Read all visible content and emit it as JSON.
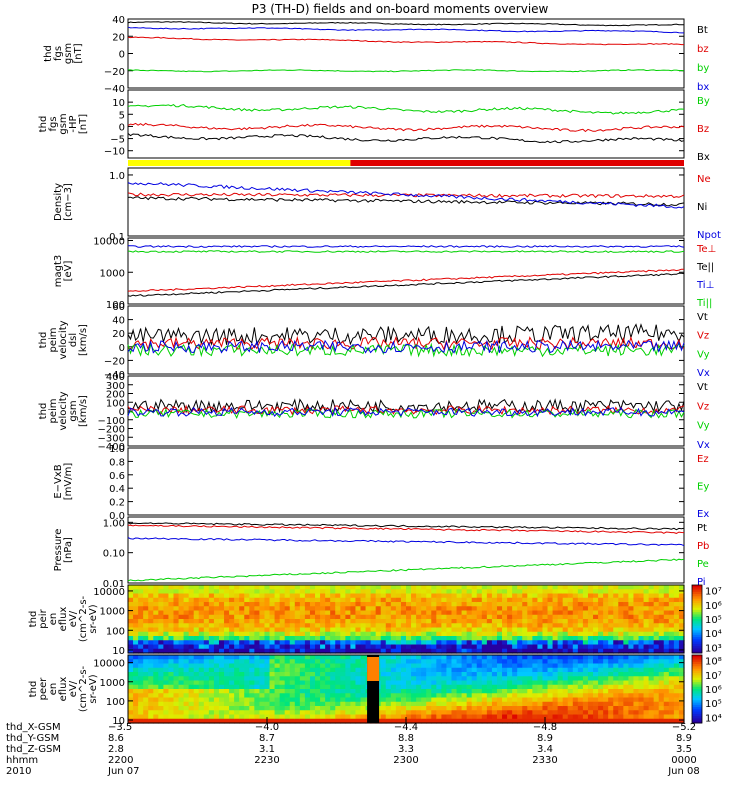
{
  "title": "P3 (TH-D) fields and on-board moments overview",
  "colors": {
    "black": "#000000",
    "red": "#e00000",
    "green": "#00d000",
    "blue": "#0000e0",
    "yellow": "#ffff00"
  },
  "chart_data": [
    {
      "type": "line",
      "name": "thd fgs gsm",
      "ylabel": [
        "thd",
        "fgs",
        "gsm",
        "[nT]"
      ],
      "ylim": [
        -40,
        40
      ],
      "yticks": [
        "40",
        "20",
        "0",
        "−20",
        "−40"
      ],
      "ytick_values": [
        40,
        20,
        0,
        -20,
        -40
      ],
      "series": [
        {
          "name": "Bt",
          "color": "black",
          "start": 36,
          "end": 33
        },
        {
          "name": "bz",
          "color": "red",
          "start": 18,
          "end": 10
        },
        {
          "name": "by",
          "color": "green",
          "start": -20,
          "end": -20
        },
        {
          "name": "bx",
          "color": "blue",
          "start": 30,
          "end": 25
        }
      ]
    },
    {
      "type": "line",
      "name": "thd fgs gsm-HP",
      "ylabel": [
        "thd",
        "fgs",
        "gsm",
        "-HP",
        "[nT]"
      ],
      "ylim": [
        -13,
        15
      ],
      "yticks": [
        "10",
        "5",
        "0",
        "−5",
        "−10"
      ],
      "ytick_values": [
        10,
        5,
        0,
        -5,
        -10
      ],
      "series": [
        {
          "name": "By",
          "color": "green",
          "start": 8,
          "end": 6
        },
        {
          "name": "Bz",
          "color": "red",
          "start": 0,
          "end": -1
        },
        {
          "name": "Bx",
          "color": "black",
          "start": -4,
          "end": -6
        }
      ]
    },
    {
      "type": "bar",
      "name": "mode bar",
      "segments": [
        {
          "color": "yellow",
          "from": 0,
          "to": 0.4
        },
        {
          "color": "red",
          "from": 0.4,
          "to": 1
        }
      ]
    },
    {
      "type": "line",
      "name": "Density",
      "ylabel": [
        "Density",
        "[cm−3]"
      ],
      "ylim": [
        0.1,
        1.3
      ],
      "log": true,
      "yticks": [
        "1.0",
        "0.1"
      ],
      "ytick_values": [
        1.0,
        0.1
      ],
      "series": [
        {
          "name": "Ne",
          "color": "red",
          "start": 0.48,
          "end": 0.45
        },
        {
          "name": "Ni",
          "color": "black",
          "start": 0.42,
          "end": 0.33
        },
        {
          "name": "Npot",
          "color": "blue",
          "start": 0.75,
          "end": 0.3
        }
      ]
    },
    {
      "type": "line",
      "name": "magt3",
      "ylabel": [
        "magt3",
        "[eV]"
      ],
      "ylim": [
        100,
        12000
      ],
      "log": true,
      "yticks": [
        "10000",
        "1000",
        "100"
      ],
      "ytick_values": [
        10000,
        1000,
        100
      ],
      "series": [
        {
          "name": "Te⊥",
          "color": "red",
          "start": 250,
          "end": 1200
        },
        {
          "name": "Te||",
          "color": "black",
          "start": 180,
          "end": 900
        },
        {
          "name": "Ti⊥",
          "color": "blue",
          "start": 6500,
          "end": 6500
        },
        {
          "name": "Ti||",
          "color": "green",
          "start": 4500,
          "end": 4500
        }
      ]
    },
    {
      "type": "line",
      "name": "thd peim velocity dsl",
      "ylabel": [
        "thd",
        "peim",
        "velocity",
        "dsl",
        "[km/s]"
      ],
      "ylim": [
        -40,
        60
      ],
      "yticks": [
        "60",
        "40",
        "20",
        "0",
        "−20",
        "−40"
      ],
      "ytick_values": [
        60,
        40,
        20,
        0,
        -20,
        -40
      ],
      "series": [
        {
          "name": "Vt",
          "color": "black",
          "start": 15,
          "end": 20
        },
        {
          "name": "Vz",
          "color": "red",
          "start": 5,
          "end": 5
        },
        {
          "name": "Vy",
          "color": "green",
          "start": -5,
          "end": -5
        },
        {
          "name": "Vx",
          "color": "blue",
          "start": 0,
          "end": 0
        }
      ]
    },
    {
      "type": "line",
      "name": "thd peim velocity gsm",
      "ylabel": [
        "thd",
        "peim",
        "velocity",
        "gsm",
        "[km/s]"
      ],
      "ylim": [
        -400,
        400
      ],
      "yticks": [
        "400",
        "300",
        "200",
        "100",
        "0",
        "−100",
        "−200",
        "−300",
        "−400"
      ],
      "ytick_values": [
        400,
        300,
        200,
        100,
        0,
        -100,
        -200,
        -300,
        -400
      ],
      "series": [
        {
          "name": "Vt",
          "color": "black",
          "start": 60,
          "end": 60
        },
        {
          "name": "Vz",
          "color": "red",
          "start": 10,
          "end": 10
        },
        {
          "name": "Vy",
          "color": "green",
          "start": -30,
          "end": -30
        },
        {
          "name": "Vx",
          "color": "blue",
          "start": -10,
          "end": -10
        }
      ]
    },
    {
      "type": "line",
      "name": "E-VxB",
      "ylabel": [
        "E−VxB",
        "[mV/m]"
      ],
      "ylim": [
        0,
        1
      ],
      "yticks": [
        "1.0",
        "0.8",
        "0.6",
        "0.4",
        "0.2",
        "0.0"
      ],
      "ytick_values": [
        1.0,
        0.8,
        0.6,
        0.4,
        0.2,
        0.0
      ],
      "series": [
        {
          "name": "Ez",
          "color": "red"
        },
        {
          "name": "Ey",
          "color": "green"
        },
        {
          "name": "Ex",
          "color": "blue"
        }
      ]
    },
    {
      "type": "line",
      "name": "Pressure",
      "ylabel": [
        "Pressure",
        "[nPa]"
      ],
      "ylim": [
        0.01,
        1.5
      ],
      "log": true,
      "yticks": [
        "1.00",
        "0.10",
        "0.01"
      ],
      "ytick_values": [
        1.0,
        0.1,
        0.01
      ],
      "series": [
        {
          "name": "Pt",
          "color": "black",
          "start": 0.95,
          "end": 0.6
        },
        {
          "name": "Pb",
          "color": "red",
          "start": 0.8,
          "end": 0.45
        },
        {
          "name": "Pe",
          "color": "green",
          "start": 0.012,
          "end": 0.06
        },
        {
          "name": "Pi",
          "color": "blue",
          "start": 0.3,
          "end": 0.18
        }
      ]
    },
    {
      "type": "heatmap",
      "name": "thd peir en eflux",
      "ylabel": [
        "thd",
        "peir",
        "en",
        "eflux",
        "eV/",
        "(cm^2-s-",
        "sr-eV)"
      ],
      "ylim": [
        7,
        20000
      ],
      "log": true,
      "yticks": [
        "10000",
        "1000",
        "100",
        "10"
      ],
      "ytick_values": [
        10000,
        1000,
        100,
        10
      ],
      "colorbar": {
        "ticks": [
          "10⁷",
          "10⁶",
          "10⁵",
          "10⁴",
          "10³"
        ],
        "tick_values": [
          7,
          6,
          5,
          4,
          3
        ],
        "range": [
          2.6,
          7.4
        ]
      }
    },
    {
      "type": "heatmap",
      "name": "thd peer en eflux",
      "ylabel": [
        "thd",
        "peer",
        "en",
        "eflux",
        "eV/",
        "(cm^2-s-",
        "sr-eV)"
      ],
      "ylim": [
        7,
        25000
      ],
      "log": true,
      "yticks": [
        "10000",
        "1000",
        "100",
        "10"
      ],
      "ytick_values": [
        10000,
        1000,
        100,
        10
      ],
      "colorbar": {
        "ticks": [
          "10⁸",
          "10⁷",
          "10⁶",
          "10⁵",
          "10⁴"
        ],
        "tick_values": [
          8,
          7,
          6,
          5,
          4
        ],
        "range": [
          3.6,
          8.4
        ]
      }
    }
  ],
  "axis": {
    "row_labels": [
      "thd_X-GSM",
      "thd_Y-GSM",
      "thd_Z-GSM",
      "hhmm",
      "2010"
    ],
    "columns": [
      {
        "x": 0,
        "values": [
          "−3.5",
          "8.6",
          "2.8",
          "2200",
          "Jun 07"
        ]
      },
      {
        "x": 0.25,
        "values": [
          "−4.0",
          "8.7",
          "3.1",
          "2230",
          ""
        ]
      },
      {
        "x": 0.5,
        "values": [
          "−4.4",
          "8.8",
          "3.3",
          "2300",
          ""
        ]
      },
      {
        "x": 0.75,
        "values": [
          "−4.8",
          "8.9",
          "3.4",
          "2330",
          ""
        ]
      },
      {
        "x": 1,
        "values": [
          "−5.2",
          "8.9",
          "3.5",
          "0000",
          "Jun 08"
        ]
      }
    ]
  }
}
